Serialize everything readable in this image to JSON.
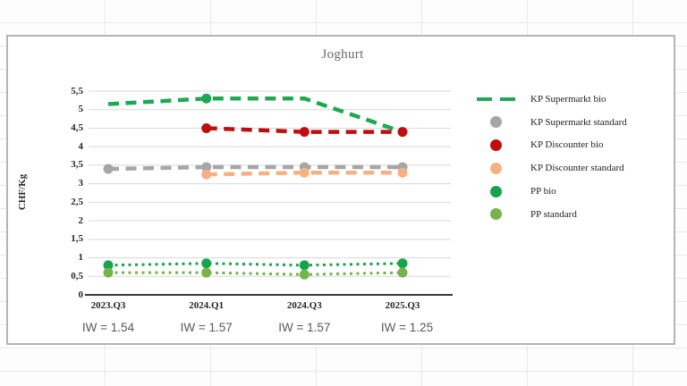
{
  "chart_data": {
    "type": "line",
    "title": "Joghurt",
    "xlabel": "",
    "ylabel": "CHF/Kg",
    "ylim": [
      0,
      5.5
    ],
    "grid": true,
    "legend_position": "right",
    "decimal_style": "comma",
    "categories": [
      "2023.Q3",
      "2024.Q1",
      "2024.Q3",
      "2025.Q3"
    ],
    "iw_labels": [
      "IW = 1.54",
      "IW = 1.57",
      "IW = 1.57",
      "IW = 1.25"
    ],
    "y_tick_labels": [
      "5,5",
      "5",
      "4,5",
      "4",
      "3,5",
      "3",
      "2,5",
      "2",
      "1,5",
      "1",
      "0,5",
      "0"
    ],
    "y_tick_values": [
      5.5,
      5,
      4.5,
      4,
      3.5,
      3,
      2.5,
      2,
      1.5,
      1,
      0.5,
      0
    ],
    "series": [
      {
        "name": "KP Supermarkt bio",
        "color": "#1fa854",
        "style": "dashed",
        "line_width": 4.5,
        "values": [
          5.15,
          5.3,
          5.3,
          4.4
        ],
        "markers": [
          false,
          true,
          false,
          false
        ]
      },
      {
        "name": "KP Supermarkt standard",
        "color": "#a6a6a6",
        "style": "dashed",
        "line_width": 4.5,
        "values": [
          3.4,
          3.45,
          3.45,
          3.45
        ],
        "markers": [
          true,
          true,
          true,
          true
        ]
      },
      {
        "name": "KP Discounter standard",
        "color": "#f5b183",
        "style": "dashed",
        "line_width": 4.5,
        "values": [
          null,
          3.25,
          3.3,
          3.3
        ],
        "markers": [
          false,
          true,
          true,
          true
        ]
      },
      {
        "name": "KP Discounter bio",
        "color": "#bd0f10",
        "style": "dashed",
        "line_width": 4.5,
        "values": [
          null,
          4.5,
          4.4,
          4.4
        ],
        "markers": [
          false,
          true,
          true,
          true
        ]
      },
      {
        "name": "PP bio",
        "color": "#17a34d",
        "style": "dotted",
        "line_width": 3,
        "values": [
          0.8,
          0.85,
          0.8,
          0.85
        ],
        "markers": [
          true,
          true,
          true,
          true
        ]
      },
      {
        "name": "PP standard",
        "color": "#77b24a",
        "style": "dotted",
        "line_width": 3,
        "values": [
          0.6,
          0.6,
          0.55,
          0.6
        ],
        "markers": [
          true,
          true,
          true,
          true
        ]
      }
    ],
    "legend": [
      {
        "label": "KP Supermarkt bio",
        "swatch": "dash",
        "color": "#1fa854"
      },
      {
        "label": "KP Supermarkt standard",
        "swatch": "circle",
        "color": "#a6a6a6"
      },
      {
        "label": "KP Discounter bio",
        "swatch": "circle",
        "color": "#bd0f10"
      },
      {
        "label": "KP Discounter standard",
        "swatch": "circle",
        "color": "#f5b183"
      },
      {
        "label": "PP bio",
        "swatch": "circle",
        "color": "#17a34d"
      },
      {
        "label": "PP standard",
        "swatch": "circle",
        "color": "#77b24a"
      }
    ],
    "colors": {
      "gridline": "#d9d9d9",
      "axis_line": "#383838",
      "axis_text": "#262626",
      "title_text": "#6b6b6b",
      "iw_text": "#595959"
    }
  }
}
